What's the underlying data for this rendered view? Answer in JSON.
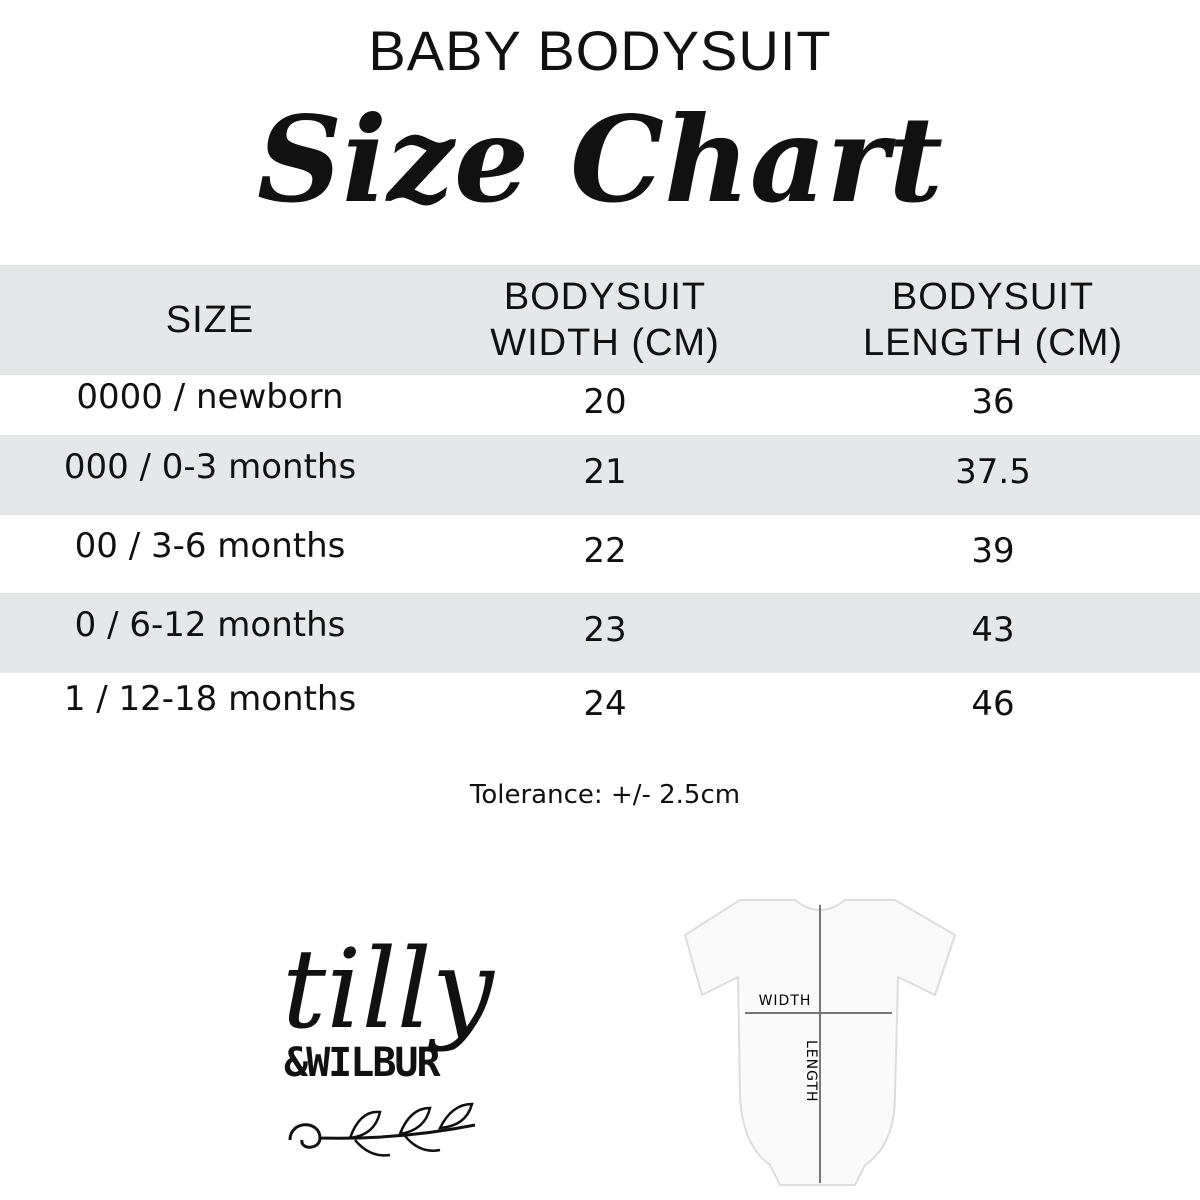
{
  "header": {
    "title": "BABY BODYSUIT",
    "subtitle": "Size Chart"
  },
  "table": {
    "columns": [
      [
        "SIZE"
      ],
      [
        "BODYSUIT",
        "WIDTH (CM)"
      ],
      [
        "BODYSUIT",
        "LENGTH (CM)"
      ]
    ],
    "rows": [
      [
        "0000 / newborn",
        "20",
        "36"
      ],
      [
        "000 / 0-3 months",
        "21",
        "37.5"
      ],
      [
        "00 / 3-6 months",
        "22",
        "39"
      ],
      [
        "0 / 6-12 months",
        "23",
        "43"
      ],
      [
        "1 / 12-18 months",
        "24",
        "46"
      ]
    ]
  },
  "note": "Tolerance: +/- 2.5cm",
  "logo": {
    "name": "tilly",
    "tagline": "&WILBUR"
  },
  "diagram": {
    "width_label": "WIDTH",
    "length_label": "LENGTH"
  }
}
